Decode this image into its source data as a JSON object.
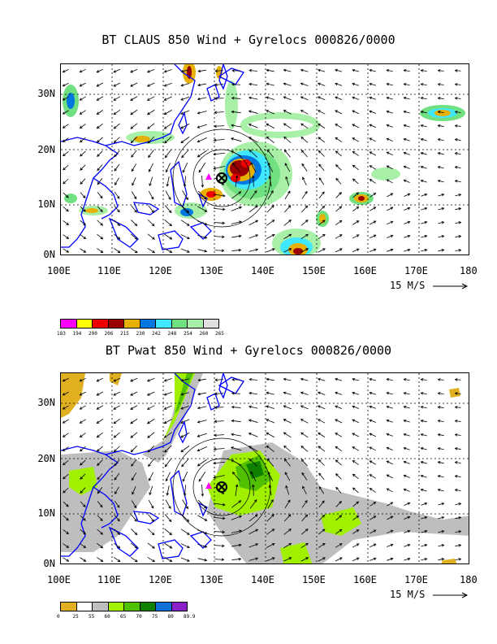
{
  "panel1": {
    "title": "BT CLAUS 850 Wind + Gyrelocs 000826/0000",
    "lat_labels": [
      "30N",
      "20N",
      "10N",
      "0N"
    ],
    "lon_labels": [
      "100E",
      "110E",
      "120E",
      "130E",
      "140E",
      "150E",
      "160E",
      "170E",
      "180"
    ],
    "wind_scale": "15 M/S",
    "colorbar": {
      "colors": [
        "#ff00ff",
        "#ffff00",
        "#ee0000",
        "#990000",
        "#e8b000",
        "#0078e0",
        "#40e8ff",
        "#70e080",
        "#a8f0a8",
        "#e0e0e0"
      ],
      "labels": [
        "183",
        "194",
        "200",
        "206",
        "215",
        "230",
        "242",
        "248",
        "254",
        "260",
        "265"
      ]
    }
  },
  "panel2": {
    "title": "BT Pwat 850 Wind + Gyrelocs 000826/0000",
    "lat_labels": [
      "30N",
      "20N",
      "10N",
      "0N"
    ],
    "lon_labels": [
      "100E",
      "110E",
      "120E",
      "130E",
      "140E",
      "150E",
      "160E",
      "170E",
      "180"
    ],
    "wind_scale": "15 M/S",
    "colorbar": {
      "colors": [
        "#e0b020",
        "#ffffff",
        "#bebebe",
        "#a0f000",
        "#50c000",
        "#108000",
        "#1070d8",
        "#8a20c8"
      ],
      "labels": [
        "0",
        "25",
        "55",
        "60",
        "65",
        "70",
        "75",
        "80",
        "89.9"
      ]
    }
  },
  "gyre_center": {
    "lon": 131.5,
    "lat": 15
  },
  "triangle_marker": {
    "lon": 128.5,
    "lat": 15.5
  }
}
